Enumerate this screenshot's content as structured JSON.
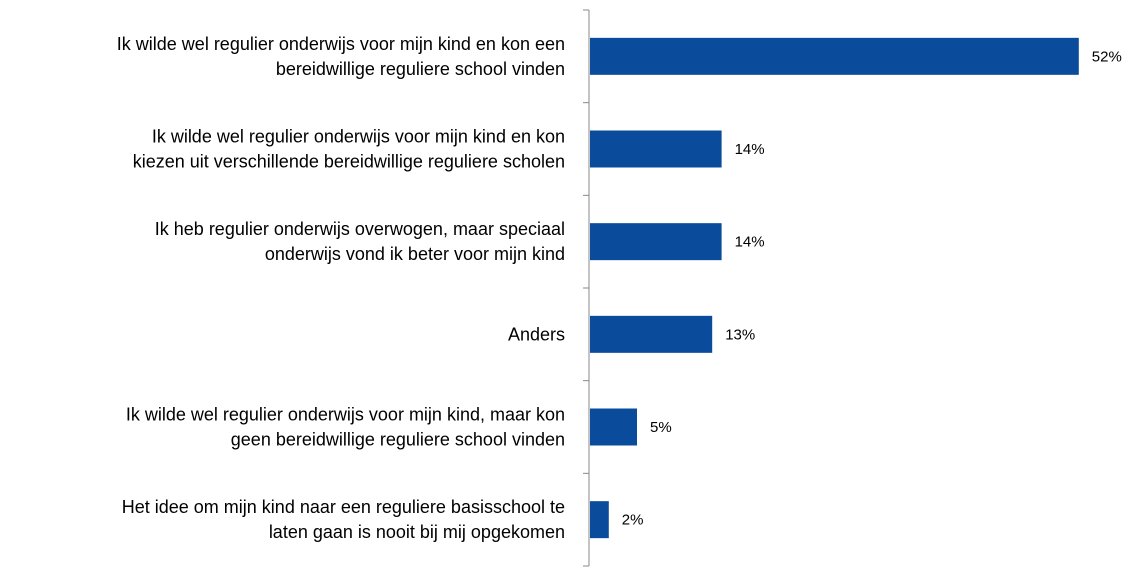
{
  "chart_data": {
    "type": "bar",
    "orientation": "horizontal",
    "title": "",
    "xlabel": "",
    "ylabel": "",
    "xlim": [
      0,
      100
    ],
    "grid": false,
    "legend": "none",
    "bar_color": "#0a4c9b",
    "categories": [
      [
        "Ik wilde wel regulier onderwijs voor mijn kind en kon een",
        "bereidwillige reguliere school vinden"
      ],
      [
        "Ik wilde wel regulier onderwijs voor mijn kind en kon",
        "kiezen uit verschillende bereidwillige reguliere scholen"
      ],
      [
        "Ik heb regulier onderwijs overwogen, maar speciaal",
        "onderwijs vond ik beter voor mijn kind"
      ],
      [
        "Anders"
      ],
      [
        "Ik wilde wel regulier onderwijs voor mijn kind, maar kon",
        "geen bereidwillige reguliere school vinden"
      ],
      [
        "Het idee om mijn kind naar een reguliere basisschool te",
        "laten gaan is nooit bij mij opgekomen"
      ]
    ],
    "values": [
      52,
      14,
      14,
      13,
      5,
      2
    ],
    "value_labels": [
      "52%",
      "14%",
      "14%",
      "13%",
      "5%",
      "2%"
    ]
  }
}
